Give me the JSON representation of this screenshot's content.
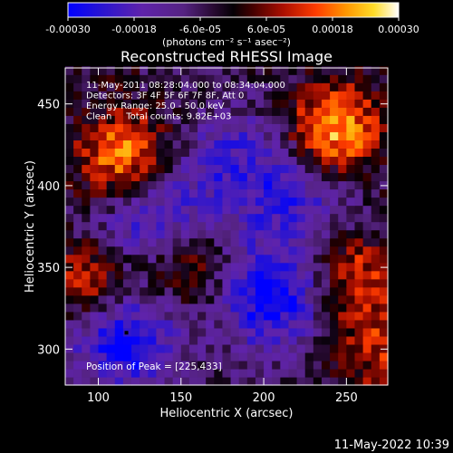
{
  "chart_data": {
    "type": "heatmap",
    "title": "Reconstructed RHESSI Image",
    "xlabel": "Heliocentric X (arcsec)",
    "ylabel": "Heliocentric Y (arcsec)",
    "xlim": [
      80,
      275
    ],
    "ylim": [
      278,
      472
    ],
    "x_ticks": [
      100,
      150,
      200,
      250
    ],
    "y_ticks": [
      300,
      350,
      400,
      450
    ],
    "colorbar": {
      "ticks": [
        "-0.00030",
        "-0.00018",
        "-6.0e-05",
        "6.0e-05",
        "0.00018",
        "0.00030"
      ],
      "unit_label": "(photons cm⁻² s⁻¹ asec⁻²)",
      "range": [
        -0.0003,
        0.0003
      ],
      "colors": [
        "#0000ff",
        "#3a1cd0",
        "#6a2aa8",
        "#5a2a80",
        "#1a0010",
        "#000000",
        "#3a0000",
        "#a01000",
        "#ff3000",
        "#ff8c00",
        "#ffd500",
        "#ffffff"
      ]
    },
    "annotations": [
      "11-May-2011 08:28:04.000 to 08:34:04.000",
      "Detectors: 3F 4F 5F 6F 7F 8F, Att 0",
      "Energy Range: 25.0 - 50.0 keV",
      "Clean     Total counts: 9.82E+03"
    ],
    "peak_label": "Position of Peak = [225,433]",
    "peak_position": [
      225,
      433
    ],
    "minimum_marker": [
      117,
      310
    ],
    "bright_regions": [
      {
        "x": 116,
        "y": 417,
        "level": 0.92
      },
      {
        "x": 242,
        "y": 433,
        "level": 1.0
      },
      {
        "x": 98,
        "y": 338,
        "level": 0.75
      },
      {
        "x": 152,
        "y": 350,
        "level": 0.55
      },
      {
        "x": 255,
        "y": 345,
        "level": 0.6
      },
      {
        "x": 270,
        "y": 300,
        "level": 0.5
      }
    ],
    "dark_regions": [
      {
        "x": 115,
        "y": 310,
        "level": -0.95
      },
      {
        "x": 205,
        "y": 332,
        "level": -0.85
      },
      {
        "x": 130,
        "y": 380,
        "level": -0.7
      },
      {
        "x": 180,
        "y": 415,
        "level": -0.5
      },
      {
        "x": 222,
        "y": 395,
        "level": -0.55
      }
    ]
  },
  "footer": {
    "timestamp": "11-May-2022 10:39"
  }
}
